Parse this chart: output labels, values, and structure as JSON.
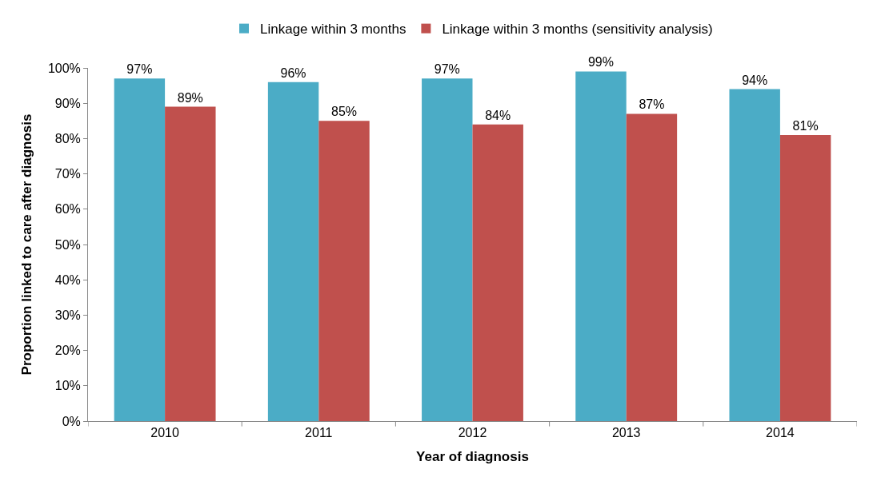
{
  "chart_data": {
    "type": "bar",
    "xlabel": "Year of diagnosis",
    "ylabel": "Proportion linked to care after diagnosis",
    "categories": [
      "2010",
      "2011",
      "2012",
      "2013",
      "2014"
    ],
    "series": [
      {
        "name": "Linkage within 3 months",
        "color": "#4bacc6",
        "values": [
          97,
          96,
          97,
          99,
          94
        ],
        "value_labels": [
          "97%",
          "96%",
          "97%",
          "99%",
          "94%"
        ]
      },
      {
        "name": "Linkage within 3 months (sensitivity analysis)",
        "color": "#c0504d",
        "values": [
          89,
          85,
          84,
          87,
          81
        ],
        "value_labels": [
          "89%",
          "85%",
          "84%",
          "87%",
          "81%"
        ]
      }
    ],
    "ylim": [
      0,
      100
    ],
    "yticks": [
      {
        "value": 0,
        "label": "0%"
      },
      {
        "value": 10,
        "label": "10%"
      },
      {
        "value": 20,
        "label": "20%"
      },
      {
        "value": 30,
        "label": "30%"
      },
      {
        "value": 40,
        "label": "40%"
      },
      {
        "value": 50,
        "label": "50%"
      },
      {
        "value": 60,
        "label": "60%"
      },
      {
        "value": 70,
        "label": "70%"
      },
      {
        "value": 80,
        "label": "80%"
      },
      {
        "value": 90,
        "label": "90%"
      },
      {
        "value": 100,
        "label": "100%"
      }
    ],
    "legend": "top"
  }
}
